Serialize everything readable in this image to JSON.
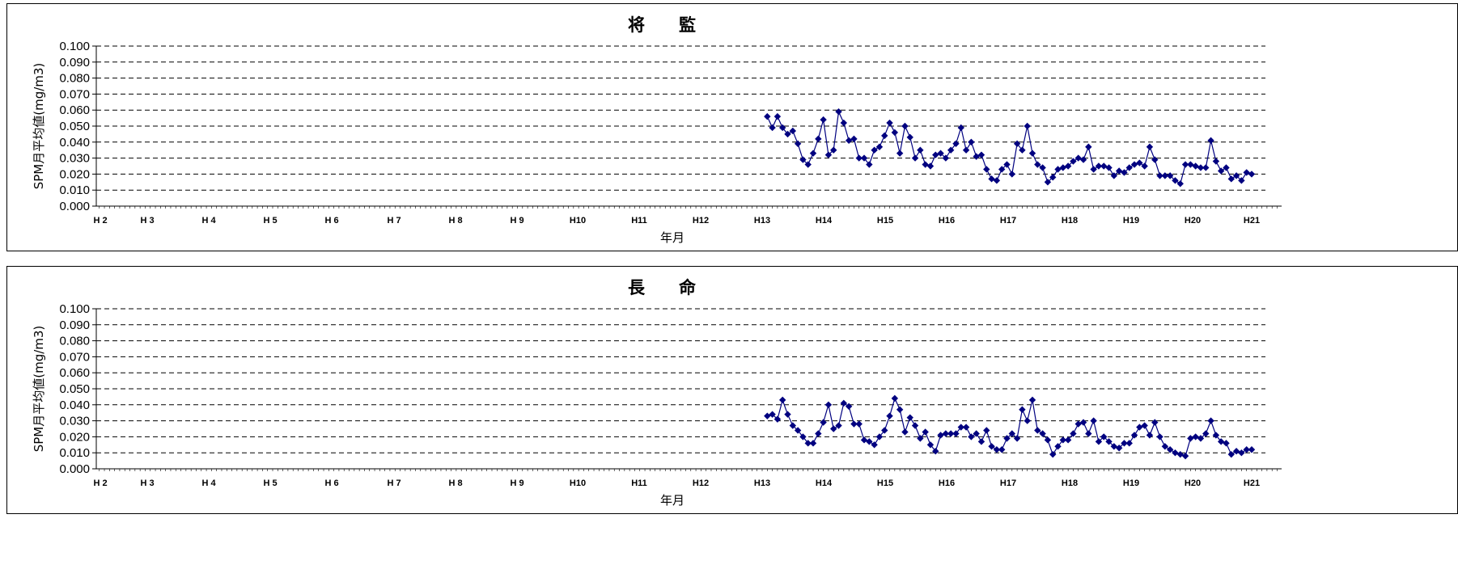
{
  "chart_data": [
    {
      "type": "line",
      "title": "将　　監",
      "xlabel": "年月",
      "ylabel": "SPM月平均値(mg/m3)",
      "ylim": [
        0,
        0.1
      ],
      "y_ticks": [
        "0.000",
        "0.010",
        "0.020",
        "0.030",
        "0.040",
        "0.050",
        "0.060",
        "0.070",
        "0.080",
        "0.090",
        "0.100"
      ],
      "x_ticks": [
        "H 2",
        "H 3",
        "H 4",
        "H 5",
        "H 6",
        "H 7",
        "H 8",
        "H 9",
        "H10",
        "H11",
        "H12",
        "H13",
        "H14",
        "H15",
        "H16",
        "H17",
        "H18",
        "H19",
        "H20",
        "H21"
      ],
      "grid": true,
      "color": "#000080",
      "x_start": "H13-05",
      "x_unit": "month",
      "values": [
        0.056,
        0.049,
        0.056,
        0.049,
        0.045,
        0.047,
        0.039,
        0.029,
        0.026,
        0.033,
        0.042,
        0.054,
        0.032,
        0.035,
        0.059,
        0.052,
        0.041,
        0.042,
        0.03,
        0.03,
        0.026,
        0.035,
        0.037,
        0.044,
        0.052,
        0.046,
        0.033,
        0.05,
        0.043,
        0.03,
        0.035,
        0.026,
        0.025,
        0.032,
        0.033,
        0.03,
        0.035,
        0.039,
        0.049,
        0.035,
        0.04,
        0.031,
        0.032,
        0.023,
        0.017,
        0.016,
        0.023,
        0.026,
        0.02,
        0.039,
        0.035,
        0.05,
        0.033,
        0.026,
        0.024,
        0.015,
        0.018,
        0.023,
        0.024,
        0.025,
        0.028,
        0.03,
        0.029,
        0.037,
        0.023,
        0.025,
        0.025,
        0.024,
        0.019,
        0.022,
        0.021,
        0.024,
        0.026,
        0.027,
        0.025,
        0.037,
        0.029,
        0.019,
        0.019,
        0.019,
        0.016,
        0.014,
        0.026,
        0.026,
        0.025,
        0.024,
        0.024,
        0.041,
        0.028,
        0.022,
        0.024,
        0.017,
        0.019,
        0.016,
        0.021,
        0.02
      ]
    },
    {
      "type": "line",
      "title": "長　　命",
      "xlabel": "年月",
      "ylabel": "SPM月平均値(mg/m3)",
      "ylim": [
        0,
        0.1
      ],
      "y_ticks": [
        "0.000",
        "0.010",
        "0.020",
        "0.030",
        "0.040",
        "0.050",
        "0.060",
        "0.070",
        "0.080",
        "0.090",
        "0.100"
      ],
      "x_ticks": [
        "H 2",
        "H 3",
        "H 4",
        "H 5",
        "H 6",
        "H 7",
        "H 8",
        "H 9",
        "H10",
        "H11",
        "H12",
        "H13",
        "H14",
        "H15",
        "H16",
        "H17",
        "H18",
        "H19",
        "H20",
        "H21"
      ],
      "grid": true,
      "color": "#000080",
      "x_start": "H13-05",
      "x_unit": "month",
      "values": [
        0.033,
        0.034,
        0.031,
        0.043,
        0.034,
        0.027,
        0.024,
        0.02,
        0.016,
        0.016,
        0.022,
        0.029,
        0.04,
        0.025,
        0.027,
        0.041,
        0.039,
        0.028,
        0.028,
        0.018,
        0.017,
        0.015,
        0.02,
        0.024,
        0.033,
        0.044,
        0.037,
        0.023,
        0.032,
        0.027,
        0.019,
        0.023,
        0.015,
        0.011,
        0.021,
        0.022,
        0.022,
        0.022,
        0.026,
        0.026,
        0.02,
        0.022,
        0.017,
        0.024,
        0.014,
        0.012,
        0.012,
        0.019,
        0.022,
        0.019,
        0.037,
        0.03,
        0.043,
        0.024,
        0.022,
        0.018,
        0.009,
        0.014,
        0.018,
        0.018,
        0.022,
        0.028,
        0.029,
        0.022,
        0.03,
        0.017,
        0.02,
        0.017,
        0.014,
        0.013,
        0.016,
        0.016,
        0.021,
        0.026,
        0.027,
        0.021,
        0.029,
        0.02,
        0.014,
        0.012,
        0.01,
        0.009,
        0.008,
        0.019,
        0.02,
        0.019,
        0.022,
        0.03,
        0.021,
        0.017,
        0.016,
        0.009,
        0.011,
        0.01,
        0.012,
        0.012
      ]
    }
  ]
}
